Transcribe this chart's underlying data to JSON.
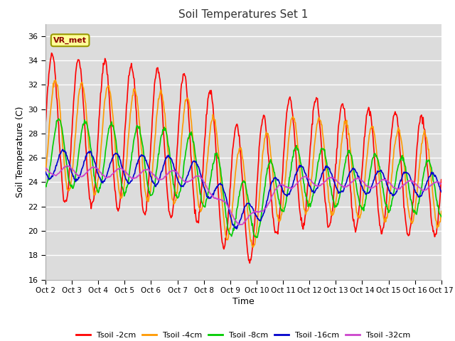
{
  "title": "Soil Temperatures Set 1",
  "xlabel": "Time",
  "ylabel": "Soil Temperature (C)",
  "ylim": [
    16,
    37
  ],
  "yticks": [
    16,
    18,
    20,
    22,
    24,
    26,
    28,
    30,
    32,
    34,
    36
  ],
  "x_labels": [
    "Oct 2",
    "Oct 3",
    "Oct 4",
    "Oct 5",
    "Oct 6",
    "Oct 7",
    "Oct 8",
    "Oct 9",
    "Oct 10",
    "Oct 11",
    "Oct 12",
    "Oct 13",
    "Oct 14",
    "Oct 15",
    "Oct 16",
    "Oct 17"
  ],
  "series_colors": [
    "#ff0000",
    "#ff9900",
    "#00cc00",
    "#0000cc",
    "#cc44cc"
  ],
  "series_labels": [
    "Tsoil -2cm",
    "Tsoil -4cm",
    "Tsoil -8cm",
    "Tsoil -16cm",
    "Tsoil -32cm"
  ],
  "background_color": "#e8e8e8",
  "plot_bg_color": "#dcdcdc",
  "annotation_text": "VR_met",
  "n_days": 15,
  "points_per_day": 48
}
